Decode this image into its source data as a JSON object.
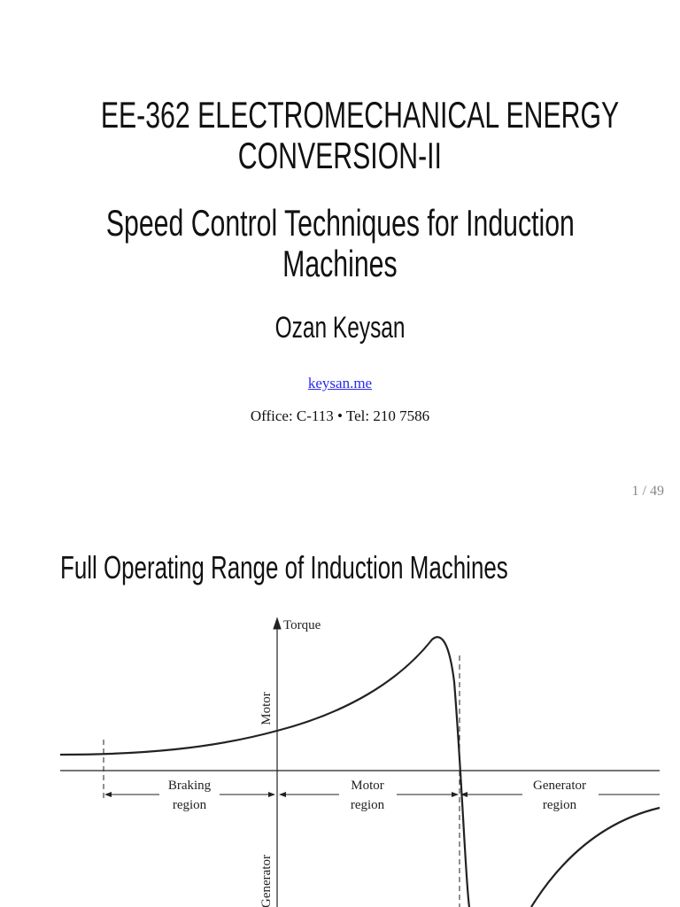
{
  "slide1": {
    "title_lines": [
      "EE-362 ELECTROMECHANICAL ENERGY",
      "CONVERSION-II"
    ],
    "subtitle_lines": [
      "Speed Control Techniques for Induction",
      "Machines"
    ],
    "author": "Ozan Keysan",
    "link": "keysan.me",
    "contact": "Office: C-113 • Tel: 210 7586",
    "page": "1 / 49"
  },
  "slide2": {
    "title": "Full Operating Range of Induction Machines",
    "figure": {
      "y_axis_label": "Torque",
      "upper_label": "Motor",
      "lower_label": "Generator",
      "regions": [
        {
          "lines": [
            "Braking",
            "region"
          ]
        },
        {
          "lines": [
            "Motor",
            "region"
          ]
        },
        {
          "lines": [
            "Generator",
            "region"
          ]
        }
      ]
    }
  }
}
